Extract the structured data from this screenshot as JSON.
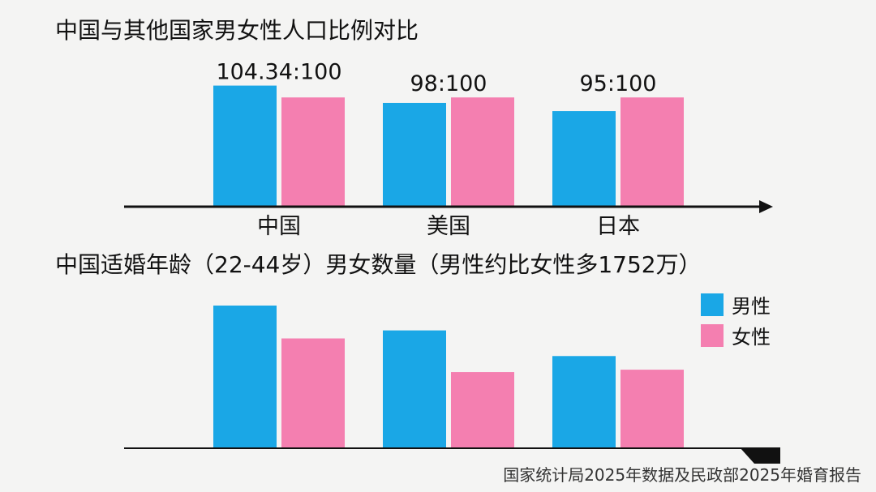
{
  "colors": {
    "male": "#1aa7e6",
    "female": "#f47fb0",
    "axis": "#111111",
    "background": "#f4f4f3"
  },
  "chart_data": [
    {
      "type": "bar",
      "title": "中国与其他国家男女性人口比例对比",
      "categories": [
        "中国",
        "美国",
        "日本"
      ],
      "series": [
        {
          "name": "男性",
          "values": [
            104.34,
            98,
            95
          ]
        },
        {
          "name": "女性",
          "values": [
            100,
            100,
            100
          ]
        }
      ],
      "data_labels": [
        "104.34:100",
        "98:100",
        "95:100"
      ],
      "ylim": [
        60,
        106
      ],
      "xlabel": "",
      "ylabel": "",
      "grid": false,
      "legend": "none",
      "axis_arrow": true
    },
    {
      "type": "bar",
      "title": "中国适婚年龄（22-44岁）男女数量（男性约比女性多1752万）",
      "categories": [
        "中国",
        "美国",
        "日本"
      ],
      "series": [
        {
          "name": "男性",
          "values": [
            178,
            147,
            115
          ]
        },
        {
          "name": "女性",
          "values": [
            137,
            95,
            98
          ]
        }
      ],
      "ylim": [
        0,
        180
      ],
      "xlabel": "",
      "ylabel": "",
      "grid": false,
      "legend": "right"
    }
  ],
  "source": "国家统计局2025年数据及民政部2025年婚育报告"
}
